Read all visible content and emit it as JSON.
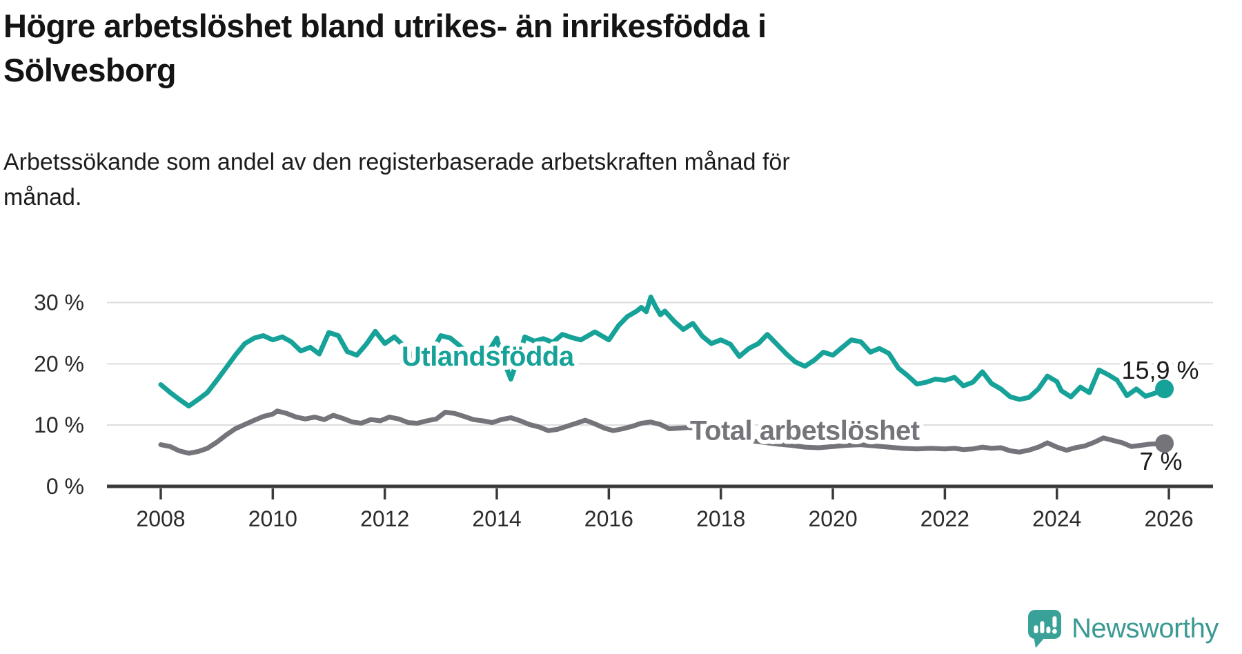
{
  "title": "Högre arbetslöshet bland utrikes- än inrikesfödda i\nSölvesborg",
  "subtitle": "Arbetssökande som andel av den registerbaserade arbetskraften månad för\nmånad.",
  "footer": {
    "brand": "Newsworthy",
    "logo_icon": "newsworthy-speech-bubble-chart-icon"
  },
  "colors": {
    "series_foreign_born": "#16a298",
    "series_total": "#74747a",
    "annotation_text": "#1a1a1a",
    "axis": "#3a3a3a",
    "grid": "#dcdcdc",
    "brand_teal": "#3a9a93"
  },
  "chart_data": {
    "type": "line",
    "title": "Högre arbetslöshet bland utrikes- än inrikesfödda i Sölvesborg",
    "subtitle": "Arbetssökande som andel av den registerbaserade arbetskraften månad för månad.",
    "unit": "%",
    "grid": "horizontal",
    "legend_position": "inline-labels",
    "x_axis": {
      "range": [
        2007.3,
        2026.8
      ],
      "ticks": [
        {
          "value": 2008,
          "label": "2008"
        },
        {
          "value": 2010,
          "label": "2010"
        },
        {
          "value": 2012,
          "label": "2012"
        },
        {
          "value": 2014,
          "label": "2014"
        },
        {
          "value": 2016,
          "label": "2016"
        },
        {
          "value": 2018,
          "label": "2018"
        },
        {
          "value": 2020,
          "label": "2020"
        },
        {
          "value": 2022,
          "label": "2022"
        },
        {
          "value": 2024,
          "label": "2024"
        },
        {
          "value": 2026,
          "label": "2026"
        }
      ]
    },
    "y_axis": {
      "range": [
        0,
        32
      ],
      "ticks": [
        {
          "value": 0,
          "label": "0 %"
        },
        {
          "value": 10,
          "label": "10 %"
        },
        {
          "value": 20,
          "label": "20 %"
        },
        {
          "value": 30,
          "label": "30 %"
        }
      ]
    },
    "series": [
      {
        "id": "utlandsfodda",
        "name": "Utlandsfödda",
        "color": "#16a298",
        "label": {
          "x": 2012.3,
          "y": 19.7
        },
        "end_label": {
          "text": "15,9 %",
          "dx": 50,
          "dy": -15
        },
        "end_value": 15.9,
        "points": [
          [
            2008.0,
            16.6
          ],
          [
            2008.17,
            15.3
          ],
          [
            2008.33,
            14.2
          ],
          [
            2008.5,
            13.1
          ],
          [
            2008.67,
            14.2
          ],
          [
            2008.83,
            15.3
          ],
          [
            2009.0,
            17.3
          ],
          [
            2009.17,
            19.4
          ],
          [
            2009.33,
            21.4
          ],
          [
            2009.5,
            23.3
          ],
          [
            2009.67,
            24.2
          ],
          [
            2009.83,
            24.6
          ],
          [
            2010.0,
            23.9
          ],
          [
            2010.17,
            24.4
          ],
          [
            2010.33,
            23.6
          ],
          [
            2010.5,
            22.1
          ],
          [
            2010.67,
            22.7
          ],
          [
            2010.83,
            21.6
          ],
          [
            2011.0,
            25.1
          ],
          [
            2011.17,
            24.6
          ],
          [
            2011.33,
            22.0
          ],
          [
            2011.5,
            21.4
          ],
          [
            2011.67,
            23.2
          ],
          [
            2011.83,
            25.3
          ],
          [
            2012.0,
            23.3
          ],
          [
            2012.17,
            24.4
          ],
          [
            2012.33,
            23.0
          ],
          [
            2012.5,
            21.2
          ],
          [
            2012.67,
            20.9
          ],
          [
            2012.83,
            21.8
          ],
          [
            2013.0,
            24.6
          ],
          [
            2013.17,
            24.2
          ],
          [
            2013.33,
            23.0
          ],
          [
            2013.5,
            21.6
          ],
          [
            2013.67,
            22.7
          ],
          [
            2013.83,
            21.6
          ],
          [
            2014.0,
            24.2
          ],
          [
            2014.08,
            21.5
          ],
          [
            2014.25,
            17.5
          ],
          [
            2014.42,
            22.0
          ],
          [
            2014.5,
            24.4
          ],
          [
            2014.67,
            23.7
          ],
          [
            2014.83,
            24.1
          ],
          [
            2015.0,
            23.5
          ],
          [
            2015.17,
            24.8
          ],
          [
            2015.33,
            24.3
          ],
          [
            2015.5,
            23.9
          ],
          [
            2015.75,
            25.2
          ],
          [
            2016.0,
            23.9
          ],
          [
            2016.17,
            26.2
          ],
          [
            2016.33,
            27.7
          ],
          [
            2016.5,
            28.6
          ],
          [
            2016.58,
            29.2
          ],
          [
            2016.67,
            28.5
          ],
          [
            2016.75,
            30.9
          ],
          [
            2016.83,
            29.4
          ],
          [
            2016.92,
            28.0
          ],
          [
            2017.0,
            28.6
          ],
          [
            2017.17,
            26.9
          ],
          [
            2017.33,
            25.6
          ],
          [
            2017.5,
            26.6
          ],
          [
            2017.67,
            24.5
          ],
          [
            2017.83,
            23.3
          ],
          [
            2018.0,
            23.9
          ],
          [
            2018.17,
            23.2
          ],
          [
            2018.33,
            21.2
          ],
          [
            2018.5,
            22.5
          ],
          [
            2018.67,
            23.3
          ],
          [
            2018.83,
            24.8
          ],
          [
            2019.0,
            23.2
          ],
          [
            2019.17,
            21.6
          ],
          [
            2019.33,
            20.3
          ],
          [
            2019.5,
            19.6
          ],
          [
            2019.67,
            20.6
          ],
          [
            2019.83,
            21.9
          ],
          [
            2020.0,
            21.4
          ],
          [
            2020.17,
            22.7
          ],
          [
            2020.33,
            23.9
          ],
          [
            2020.5,
            23.6
          ],
          [
            2020.67,
            21.9
          ],
          [
            2020.83,
            22.5
          ],
          [
            2021.0,
            21.7
          ],
          [
            2021.17,
            19.3
          ],
          [
            2021.33,
            18.1
          ],
          [
            2021.5,
            16.7
          ],
          [
            2021.67,
            17.0
          ],
          [
            2021.83,
            17.5
          ],
          [
            2022.0,
            17.3
          ],
          [
            2022.17,
            17.8
          ],
          [
            2022.33,
            16.4
          ],
          [
            2022.5,
            17.0
          ],
          [
            2022.67,
            18.7
          ],
          [
            2022.83,
            16.8
          ],
          [
            2023.0,
            15.9
          ],
          [
            2023.17,
            14.6
          ],
          [
            2023.33,
            14.2
          ],
          [
            2023.5,
            14.5
          ],
          [
            2023.67,
            15.9
          ],
          [
            2023.83,
            18.0
          ],
          [
            2024.0,
            17.1
          ],
          [
            2024.08,
            15.6
          ],
          [
            2024.25,
            14.6
          ],
          [
            2024.42,
            16.2
          ],
          [
            2024.58,
            15.3
          ],
          [
            2024.75,
            19.0
          ],
          [
            2024.92,
            18.2
          ],
          [
            2025.08,
            17.3
          ],
          [
            2025.25,
            14.8
          ],
          [
            2025.42,
            15.9
          ],
          [
            2025.58,
            14.7
          ],
          [
            2025.75,
            15.2
          ],
          [
            2025.92,
            15.9
          ]
        ]
      },
      {
        "id": "total",
        "name": "Total arbetslöshet",
        "color": "#74747a",
        "label": {
          "x": 2017.45,
          "y": 7.6
        },
        "end_label": {
          "text": "7 %",
          "dx": 26,
          "dy": 38
        },
        "end_value": 7,
        "points": [
          [
            2008.0,
            6.8
          ],
          [
            2008.17,
            6.5
          ],
          [
            2008.33,
            5.8
          ],
          [
            2008.5,
            5.4
          ],
          [
            2008.67,
            5.7
          ],
          [
            2008.83,
            6.2
          ],
          [
            2009.0,
            7.2
          ],
          [
            2009.17,
            8.4
          ],
          [
            2009.33,
            9.4
          ],
          [
            2009.5,
            10.1
          ],
          [
            2009.67,
            10.8
          ],
          [
            2009.83,
            11.4
          ],
          [
            2010.0,
            11.8
          ],
          [
            2010.08,
            12.3
          ],
          [
            2010.25,
            11.9
          ],
          [
            2010.42,
            11.3
          ],
          [
            2010.58,
            11.0
          ],
          [
            2010.75,
            11.3
          ],
          [
            2010.92,
            10.9
          ],
          [
            2011.08,
            11.6
          ],
          [
            2011.25,
            11.1
          ],
          [
            2011.42,
            10.5
          ],
          [
            2011.58,
            10.3
          ],
          [
            2011.75,
            10.9
          ],
          [
            2011.92,
            10.7
          ],
          [
            2012.08,
            11.3
          ],
          [
            2012.25,
            11.0
          ],
          [
            2012.42,
            10.4
          ],
          [
            2012.58,
            10.3
          ],
          [
            2012.75,
            10.7
          ],
          [
            2012.92,
            11.0
          ],
          [
            2013.08,
            12.1
          ],
          [
            2013.25,
            11.9
          ],
          [
            2013.42,
            11.4
          ],
          [
            2013.58,
            10.9
          ],
          [
            2013.75,
            10.7
          ],
          [
            2013.92,
            10.4
          ],
          [
            2014.08,
            10.9
          ],
          [
            2014.25,
            11.2
          ],
          [
            2014.42,
            10.7
          ],
          [
            2014.58,
            10.1
          ],
          [
            2014.75,
            9.7
          ],
          [
            2014.92,
            9.1
          ],
          [
            2015.08,
            9.3
          ],
          [
            2015.25,
            9.8
          ],
          [
            2015.42,
            10.3
          ],
          [
            2015.58,
            10.8
          ],
          [
            2015.75,
            10.2
          ],
          [
            2015.92,
            9.5
          ],
          [
            2016.08,
            9.1
          ],
          [
            2016.25,
            9.4
          ],
          [
            2016.42,
            9.8
          ],
          [
            2016.58,
            10.3
          ],
          [
            2016.75,
            10.5
          ],
          [
            2016.92,
            10.1
          ],
          [
            2017.08,
            9.4
          ],
          [
            2017.25,
            9.5
          ],
          [
            2017.42,
            9.6
          ],
          [
            2017.58,
            9.5
          ],
          [
            2017.75,
            9.7
          ],
          [
            2017.92,
            8.9
          ],
          [
            2018.08,
            8.3
          ],
          [
            2018.25,
            7.9
          ],
          [
            2018.5,
            7.5
          ],
          [
            2018.75,
            7.2
          ],
          [
            2019.0,
            6.9
          ],
          [
            2019.25,
            6.7
          ],
          [
            2019.5,
            6.4
          ],
          [
            2019.75,
            6.3
          ],
          [
            2020.0,
            6.5
          ],
          [
            2020.25,
            6.7
          ],
          [
            2020.5,
            6.8
          ],
          [
            2020.75,
            6.6
          ],
          [
            2021.0,
            6.4
          ],
          [
            2021.25,
            6.2
          ],
          [
            2021.5,
            6.1
          ],
          [
            2021.75,
            6.2
          ],
          [
            2022.0,
            6.1
          ],
          [
            2022.17,
            6.2
          ],
          [
            2022.33,
            6.0
          ],
          [
            2022.5,
            6.1
          ],
          [
            2022.67,
            6.4
          ],
          [
            2022.83,
            6.2
          ],
          [
            2023.0,
            6.3
          ],
          [
            2023.17,
            5.8
          ],
          [
            2023.33,
            5.6
          ],
          [
            2023.5,
            5.9
          ],
          [
            2023.67,
            6.4
          ],
          [
            2023.83,
            7.1
          ],
          [
            2024.0,
            6.4
          ],
          [
            2024.17,
            5.9
          ],
          [
            2024.33,
            6.3
          ],
          [
            2024.5,
            6.6
          ],
          [
            2024.67,
            7.2
          ],
          [
            2024.83,
            7.9
          ],
          [
            2025.0,
            7.5
          ],
          [
            2025.17,
            7.1
          ],
          [
            2025.33,
            6.5
          ],
          [
            2025.5,
            6.7
          ],
          [
            2025.67,
            6.9
          ],
          [
            2025.92,
            7.0
          ]
        ]
      }
    ]
  }
}
